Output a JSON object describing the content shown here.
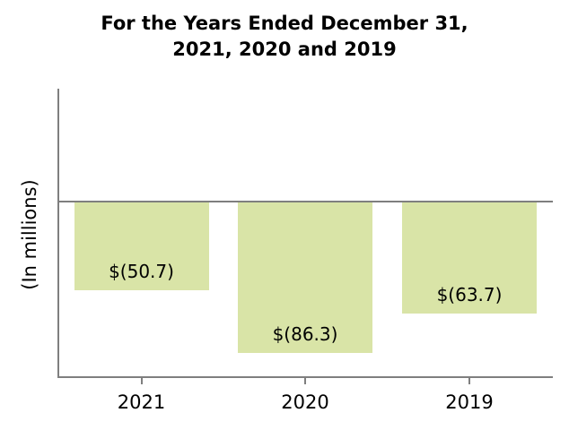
{
  "title": {
    "line1": "For the Years Ended December 31,",
    "line2": "2021, 2020 and 2019"
  },
  "chart_data": {
    "type": "bar",
    "title": "For the Years Ended December 31, 2021, 2020 and 2019",
    "categories": [
      "2021",
      "2020",
      "2019"
    ],
    "values": [
      -50.7,
      -86.3,
      -63.7
    ],
    "value_labels": [
      "$(50.7)",
      "$(86.3)",
      "$(63.7)"
    ],
    "xlabel": "",
    "ylabel": "(In millions)",
    "ylim": [
      -99,
      65
    ],
    "baseline": 0,
    "grid": false,
    "legend_position": "none",
    "bar_color": "#d9e4a7",
    "axis_color": "#7f7f7f",
    "text_color": "#000000"
  }
}
